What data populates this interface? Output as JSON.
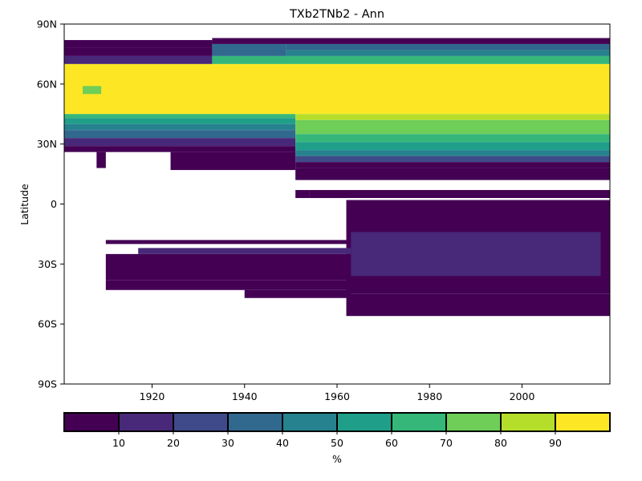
{
  "chart_data": {
    "type": "heatmap",
    "title": "TXb2TNb2 - Ann",
    "xlabel": "",
    "ylabel": "Latitude",
    "xlim": [
      1901,
      2019
    ],
    "ylim": [
      -90,
      90
    ],
    "x_ticks": [
      1920,
      1940,
      1960,
      1980,
      2000
    ],
    "y_ticks": [
      {
        "value": 90,
        "label": "90N"
      },
      {
        "value": 60,
        "label": "60N"
      },
      {
        "value": 30,
        "label": "30N"
      },
      {
        "value": 0,
        "label": "0"
      },
      {
        "value": -30,
        "label": "30S"
      },
      {
        "value": -60,
        "label": "60S"
      },
      {
        "value": -90,
        "label": "90S"
      }
    ],
    "grid": false,
    "colorbar": {
      "label": "%",
      "range": [
        0,
        100
      ],
      "ticks": [
        10,
        20,
        30,
        40,
        50,
        60,
        70,
        80,
        90
      ],
      "colors": [
        "#440154",
        "#482878",
        "#3e4a89",
        "#31688e",
        "#26828e",
        "#1f9e89",
        "#35b779",
        "#6ece58",
        "#b5de2b",
        "#fde725"
      ]
    },
    "regions": [
      {
        "x": [
          1901,
          1933
        ],
        "lat": [
          78,
          82
        ],
        "value": 5
      },
      {
        "x": [
          1933,
          2019
        ],
        "lat": [
          80,
          83
        ],
        "value": 5
      },
      {
        "x": [
          1901,
          1933
        ],
        "lat": [
          74,
          78
        ],
        "value": 5
      },
      {
        "x": [
          1933,
          1949
        ],
        "lat": [
          74,
          80
        ],
        "value": 35
      },
      {
        "x": [
          1949,
          2019
        ],
        "lat": [
          77,
          80
        ],
        "value": 35
      },
      {
        "x": [
          1949,
          2019
        ],
        "lat": [
          74,
          77
        ],
        "value": 45
      },
      {
        "x": [
          1901,
          1933
        ],
        "lat": [
          70,
          74
        ],
        "value": 15
      },
      {
        "x": [
          1933,
          2019
        ],
        "lat": [
          70,
          74
        ],
        "value": 65
      },
      {
        "x": [
          1901,
          2019
        ],
        "lat": [
          45,
          70
        ],
        "value": 95
      },
      {
        "x": [
          1905,
          1909
        ],
        "lat": [
          55,
          59
        ],
        "value": 75
      },
      {
        "x": [
          1901,
          1951
        ],
        "lat": [
          43,
          45
        ],
        "value": 65
      },
      {
        "x": [
          1901,
          1951
        ],
        "lat": [
          40,
          43
        ],
        "value": 55
      },
      {
        "x": [
          1901,
          1951
        ],
        "lat": [
          37,
          40
        ],
        "value": 45
      },
      {
        "x": [
          1901,
          1951
        ],
        "lat": [
          33,
          37
        ],
        "value": 35
      },
      {
        "x": [
          1901,
          1951
        ],
        "lat": [
          29,
          33
        ],
        "value": 15
      },
      {
        "x": [
          1901,
          1951
        ],
        "lat": [
          26,
          29
        ],
        "value": 5
      },
      {
        "x": [
          1951,
          2019
        ],
        "lat": [
          42,
          45
        ],
        "value": 85
      },
      {
        "x": [
          1951,
          2019
        ],
        "lat": [
          35,
          42
        ],
        "value": 75
      },
      {
        "x": [
          1951,
          2019
        ],
        "lat": [
          31,
          35
        ],
        "value": 65
      },
      {
        "x": [
          1951,
          2019
        ],
        "lat": [
          27,
          31
        ],
        "value": 55
      },
      {
        "x": [
          1951,
          2019
        ],
        "lat": [
          24,
          27
        ],
        "value": 45
      },
      {
        "x": [
          1951,
          2019
        ],
        "lat": [
          21,
          24
        ],
        "value": 25
      },
      {
        "x": [
          1951,
          2019
        ],
        "lat": [
          18,
          21
        ],
        "value": 5
      },
      {
        "x": [
          1924,
          1951
        ],
        "lat": [
          17,
          26
        ],
        "value": 5
      },
      {
        "x": [
          1908,
          1910
        ],
        "lat": [
          18,
          26
        ],
        "value": 5
      },
      {
        "x": [
          1951,
          2019
        ],
        "lat": [
          12,
          18
        ],
        "value": 5
      },
      {
        "x": [
          1951,
          1954
        ],
        "lat": [
          3,
          7
        ],
        "value": 5
      },
      {
        "x": [
          1954,
          2019
        ],
        "lat": [
          3,
          7
        ],
        "value": 5
      },
      {
        "x": [
          1962,
          2019
        ],
        "lat": [
          -45,
          2
        ],
        "value": 5
      },
      {
        "x": [
          1962,
          2019
        ],
        "lat": [
          -56,
          -45
        ],
        "value": 5
      },
      {
        "x": [
          1963,
          2017
        ],
        "lat": [
          -36,
          -14
        ],
        "value": 15
      },
      {
        "x": [
          1910,
          1963
        ],
        "lat": [
          -20,
          -18
        ],
        "value": 5
      },
      {
        "x": [
          1910,
          1963
        ],
        "lat": [
          -38,
          -25
        ],
        "value": 5
      },
      {
        "x": [
          1917,
          1963
        ],
        "lat": [
          -25,
          -22
        ],
        "value": 15
      },
      {
        "x": [
          1910,
          1963
        ],
        "lat": [
          -43,
          -38
        ],
        "value": 5
      },
      {
        "x": [
          1940,
          1963
        ],
        "lat": [
          -47,
          -43
        ],
        "value": 5
      }
    ]
  }
}
